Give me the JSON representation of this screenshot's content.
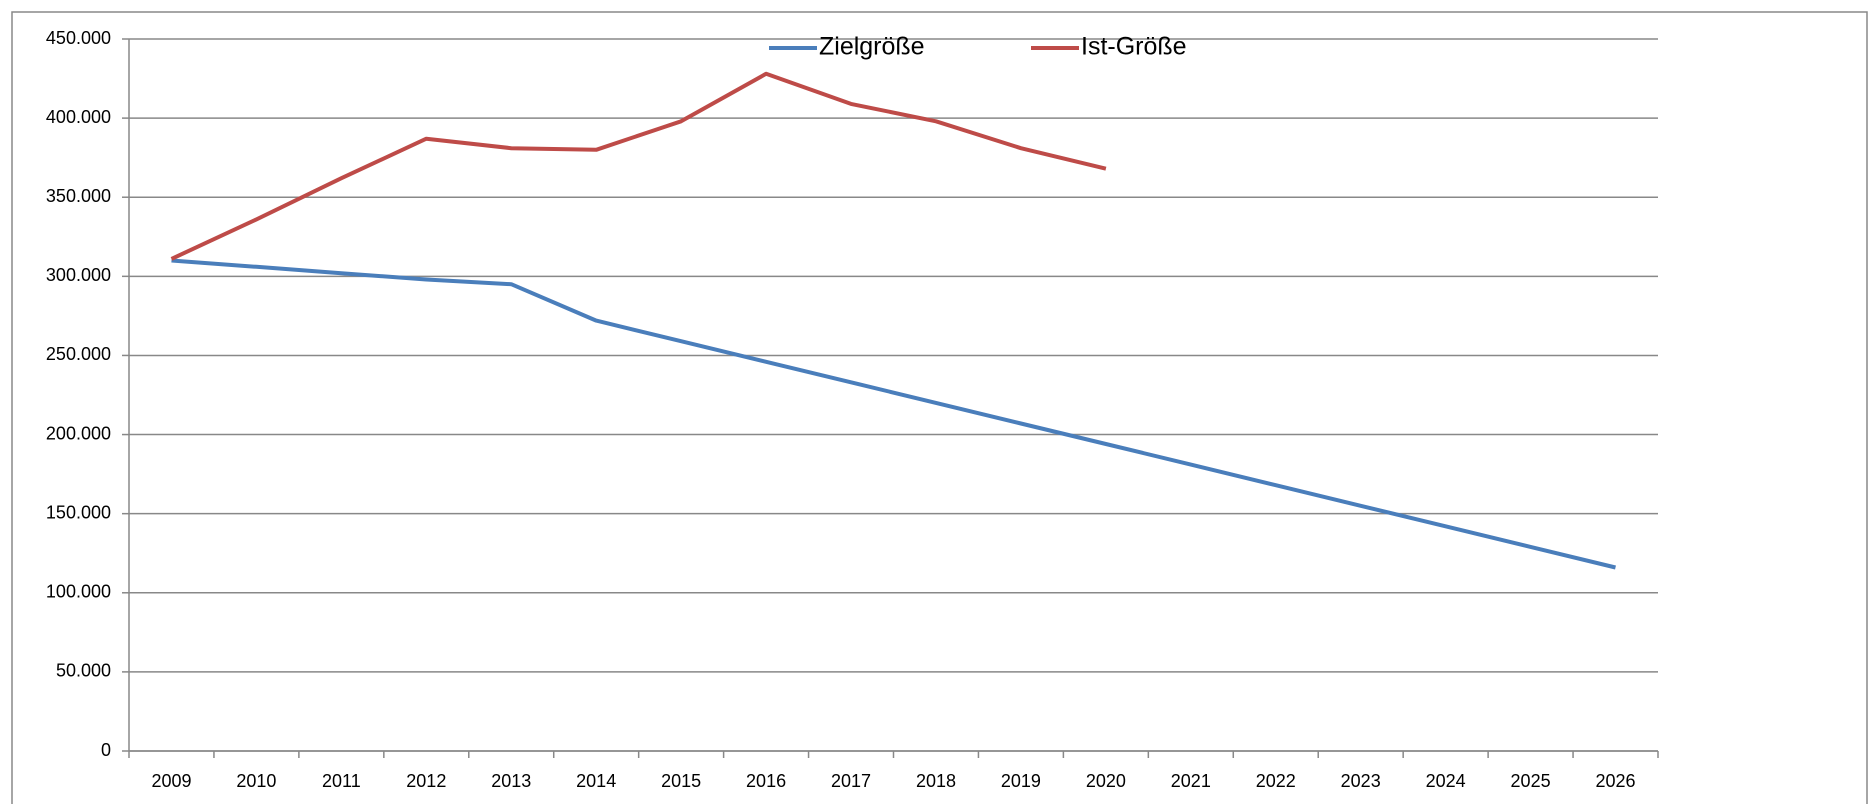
{
  "chart_data": {
    "type": "line",
    "categories": [
      "2009",
      "2010",
      "2011",
      "2012",
      "2013",
      "2014",
      "2015",
      "2016",
      "2017",
      "2018",
      "2019",
      "2020",
      "2021",
      "2022",
      "2023",
      "2024",
      "2025",
      "2026"
    ],
    "series": [
      {
        "name": "Zielgröße",
        "color": "#4a7ebb",
        "values": [
          310000,
          306000,
          302000,
          298000,
          295000,
          272000,
          259000,
          246000,
          233000,
          220000,
          207000,
          194000,
          181000,
          168000,
          155000,
          142000,
          129000,
          116000
        ]
      },
      {
        "name": "Ist-Größe",
        "color": "#be4b48",
        "values": [
          311000,
          336000,
          362000,
          387000,
          381000,
          380000,
          398000,
          428000,
          409000,
          398000,
          381000,
          368000,
          null,
          null,
          null,
          null,
          null,
          null
        ]
      }
    ],
    "ylim": [
      0,
      450000
    ],
    "yticks": [
      0,
      {
        "value": 50000,
        "label": "50.000"
      },
      {
        "value": 100000,
        "label": "100.000"
      },
      {
        "value": 150000,
        "label": "150.000"
      },
      {
        "value": 200000,
        "label": "200.000"
      },
      {
        "value": 250000,
        "label": "250.000"
      },
      {
        "value": 300000,
        "label": "300.000"
      },
      {
        "value": 350000,
        "label": "350.000"
      },
      {
        "value": 400000,
        "label": "400.000"
      },
      {
        "value": 450000,
        "label": "450.000"
      }
    ],
    "grid": true,
    "legend": "top"
  }
}
